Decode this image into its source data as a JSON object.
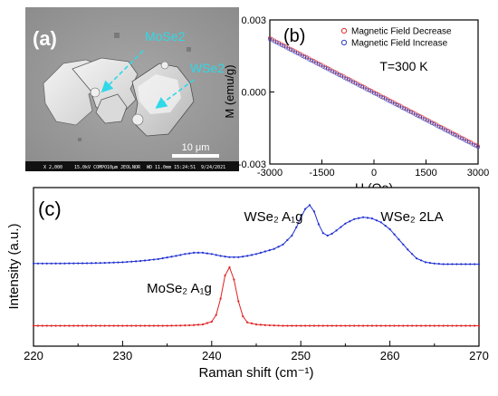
{
  "panel_a": {
    "label": "(a)",
    "arrow_labels": [
      "MoSe2",
      "WSe2"
    ],
    "scale_bar": "10 μm",
    "info_bar": [
      "X 2,000",
      "15.0kV COMPO",
      "NOR",
      "WD 11.0mm 15:24:51",
      "10µm JEOL",
      "9/24/2021"
    ]
  },
  "chart_data": [
    {
      "panel": "(b)",
      "type": "scatter",
      "title": "",
      "xlabel": "H (Oe)",
      "ylabel": "M (emu/g)",
      "xlim": [
        -3000,
        3000
      ],
      "ylim": [
        -0.003,
        0.003
      ],
      "xticks": [
        "-3000",
        "-1500",
        "0",
        "1500",
        "3000"
      ],
      "yticks": [
        "0.003",
        "0.000",
        "-0.003"
      ],
      "annotation": "T=300 K",
      "legend_position": "top-right",
      "series": [
        {
          "name": "Magnetic Field Decrease",
          "color": "#e03030",
          "marker": "circle-open",
          "x": [
            -3000,
            3000
          ],
          "y": [
            0.00225,
            -0.00225
          ]
        },
        {
          "name": "Magnetic Field Increase",
          "color": "#3040c0",
          "marker": "circle-open",
          "x": [
            -3000,
            3000
          ],
          "y": [
            0.0022,
            -0.0023
          ]
        }
      ]
    },
    {
      "panel": "(c)",
      "type": "line",
      "title": "",
      "xlabel": "Raman shift (cm⁻¹)",
      "ylabel": "Intensity (a.u.)",
      "xlim": [
        220,
        270
      ],
      "xticks": [
        "220",
        "230",
        "240",
        "250",
        "260",
        "270"
      ],
      "annotations": [
        {
          "text": "WSe₂ A₁g",
          "x": 250
        },
        {
          "text": "WSe₂ 2LA",
          "x": 260
        },
        {
          "text": "MoSe₂ A₁g",
          "x": 235
        }
      ],
      "series": [
        {
          "name": "WSe2",
          "color": "#2030d0",
          "x": [
            220,
            222,
            224,
            226,
            228,
            230,
            232,
            234,
            236,
            237,
            238,
            239,
            240,
            241,
            242,
            243,
            244,
            245,
            246,
            247,
            248,
            249,
            249.5,
            250,
            250.5,
            251,
            251.5,
            252,
            252.5,
            253,
            253.5,
            254,
            255,
            256,
            257,
            258,
            259,
            260,
            261,
            262,
            263,
            264,
            265,
            266,
            268,
            270
          ],
          "y": [
            0.06,
            0.06,
            0.062,
            0.065,
            0.07,
            0.08,
            0.1,
            0.13,
            0.18,
            0.21,
            0.23,
            0.23,
            0.21,
            0.18,
            0.16,
            0.16,
            0.18,
            0.21,
            0.25,
            0.29,
            0.36,
            0.5,
            0.63,
            0.78,
            0.92,
            0.98,
            0.88,
            0.68,
            0.54,
            0.5,
            0.53,
            0.58,
            0.69,
            0.76,
            0.79,
            0.77,
            0.71,
            0.6,
            0.44,
            0.28,
            0.14,
            0.08,
            0.06,
            0.05,
            0.05,
            0.05
          ]
        },
        {
          "name": "MoSe2",
          "color": "#e02020",
          "x": [
            220,
            225,
            230,
            235,
            237,
            238,
            239,
            240,
            240.5,
            241,
            241.5,
            242,
            242.5,
            243,
            243.5,
            244,
            245,
            246,
            248,
            250,
            255,
            260,
            265,
            270
          ],
          "y": [
            0.02,
            0.02,
            0.02,
            0.02,
            0.025,
            0.03,
            0.04,
            0.08,
            0.18,
            0.42,
            0.76,
            0.88,
            0.7,
            0.38,
            0.16,
            0.07,
            0.04,
            0.03,
            0.02,
            0.02,
            0.02,
            0.02,
            0.02,
            0.02
          ]
        }
      ]
    }
  ]
}
